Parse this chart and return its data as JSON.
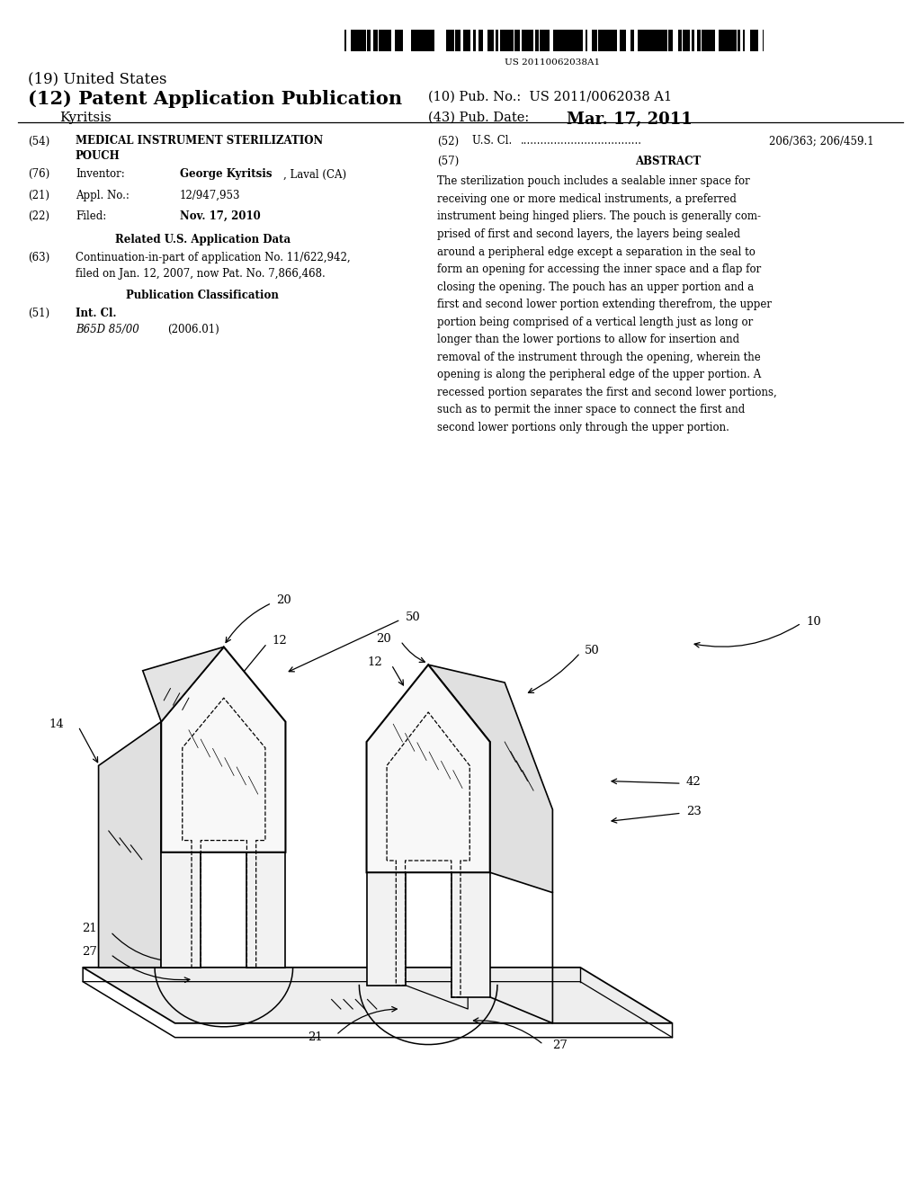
{
  "background_color": "#ffffff",
  "barcode_text": "US 20110062038A1",
  "title_19": "(19) United States",
  "title_12": "(12) Patent Application Publication",
  "pub_no_label": "(10) Pub. No.:",
  "pub_no_value": "US 2011/0062038 A1",
  "pub_date_label": "(43) Pub. Date:",
  "pub_date_value": "Mar. 17, 2011",
  "inventor_name": "Kyritsis",
  "field_54_label": "(54)",
  "field_54_title": "MEDICAL INSTRUMENT STERILIZATION\nPOUCH",
  "field_76_label": "(76)",
  "field_76_name": "Inventor:",
  "field_76_value_bold": "George Kyritsis",
  "field_76_value_normal": ", Laval (CA)",
  "field_21_label": "(21)",
  "field_21_name": "Appl. No.:",
  "field_21_value": "12/947,953",
  "field_22_label": "(22)",
  "field_22_name": "Filed:",
  "field_22_value": "Nov. 17, 2010",
  "related_title": "Related U.S. Application Data",
  "field_63_label": "(63)",
  "field_63_line1": "Continuation-in-part of application No. 11/622,942,",
  "field_63_line2": "filed on Jan. 12, 2007, now Pat. No. 7,866,468.",
  "pub_class_title": "Publication Classification",
  "field_51_label": "(51)",
  "field_51_name": "Int. Cl.",
  "field_51_class": "B65D 85/00",
  "field_51_year": "(2006.01)",
  "field_52_label": "(52)",
  "field_52_name": "U.S. Cl.",
  "field_52_dots": "....................................",
  "field_52_value": "206/363; 206/459.1",
  "field_57_label": "(57)",
  "field_57_title": "ABSTRACT",
  "abstract_lines": [
    "The sterilization pouch includes a sealable inner space for",
    "receiving one or more medical instruments, a preferred",
    "instrument being hinged pliers. The pouch is generally com-",
    "prised of first and second layers, the layers being sealed",
    "around a peripheral edge except a separation in the seal to",
    "form an opening for accessing the inner space and a flap for",
    "closing the opening. The pouch has an upper portion and a",
    "first and second lower portion extending therefrom, the upper",
    "portion being comprised of a vertical length just as long or",
    "longer than the lower portions to allow for insertion and",
    "removal of the instrument through the opening, wherein the",
    "opening is along the peripheral edge of the upper portion. A",
    "recessed portion separates the first and second lower portions,",
    "such as to permit the inner space to connect the first and",
    "second lower portions only through the upper portion."
  ]
}
